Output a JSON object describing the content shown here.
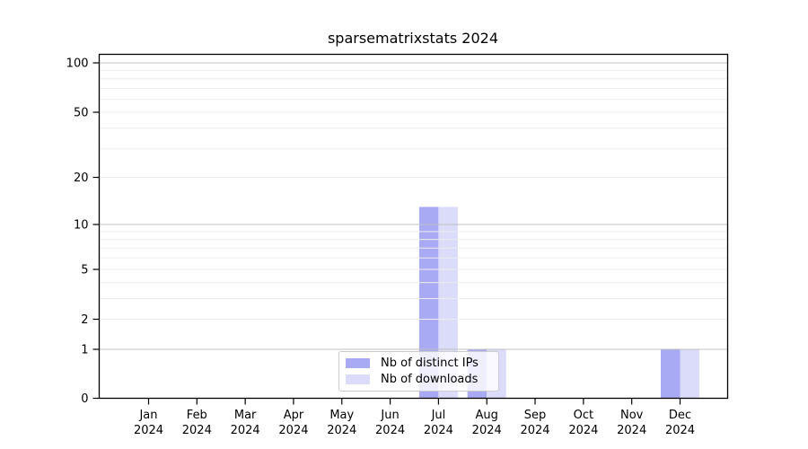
{
  "chart_data": {
    "type": "bar",
    "title": "sparsematrixstats 2024",
    "categories": [
      "Jan",
      "Feb",
      "Mar",
      "Apr",
      "May",
      "Jun",
      "Jul",
      "Aug",
      "Sep",
      "Oct",
      "Nov",
      "Dec"
    ],
    "year": "2024",
    "series": [
      {
        "name": "Nb of distinct IPs",
        "color": "#a9aaf4",
        "values": [
          0,
          0,
          0,
          0,
          0,
          0,
          13,
          1,
          0,
          0,
          0,
          1
        ]
      },
      {
        "name": "Nb of downloads",
        "color": "#dadcf9",
        "values": [
          0,
          0,
          0,
          0,
          0,
          0,
          13,
          1,
          0,
          0,
          0,
          1
        ]
      }
    ],
    "xlabel": "",
    "ylabel": "",
    "yscale": "log1p",
    "ylim": [
      0,
      114
    ],
    "yticks": [
      0,
      1,
      2,
      5,
      10,
      20,
      50,
      100
    ],
    "grid_major": [
      1,
      10,
      100
    ],
    "grid_minor": [
      2,
      3,
      4,
      5,
      6,
      7,
      8,
      9,
      20,
      30,
      40,
      50,
      60,
      70,
      80,
      90
    ],
    "legend_position": "inside lower center"
  },
  "colors": {
    "background": "#ffffff",
    "axis": "#000000",
    "grid_major": "#c0c0c0",
    "grid_minor": "#ededed",
    "legend_border": "#cccccc",
    "text": "#000000"
  }
}
